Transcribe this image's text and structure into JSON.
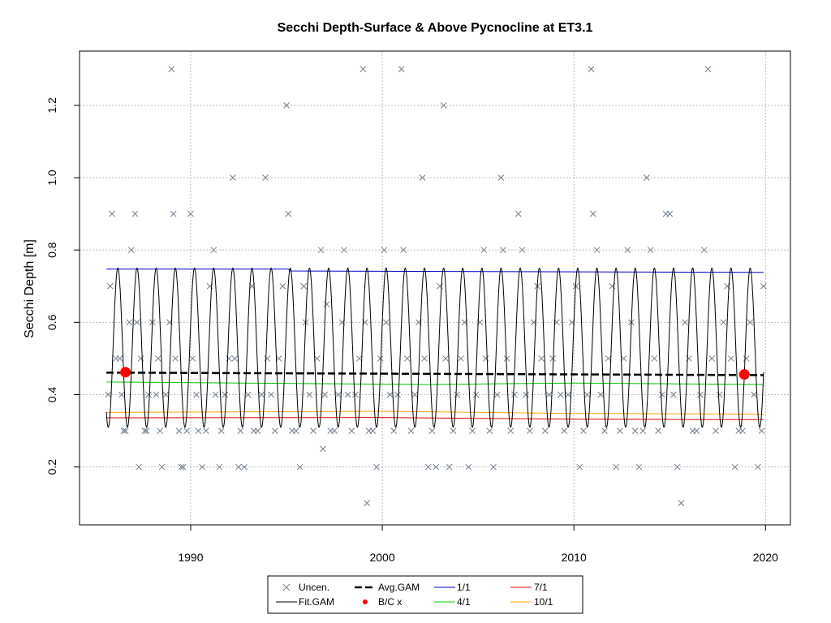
{
  "chart_data": {
    "type": "line",
    "title": "Secchi Depth-Surface & Above Pycnocline at ET3.1",
    "xlabel": "",
    "ylabel": "Secchi Depth [m]",
    "xlim": [
      1984.2,
      2021.3
    ],
    "ylim": [
      0.04,
      1.35
    ],
    "x_ticks": [
      1990,
      2000,
      2010,
      2020
    ],
    "y_ticks": [
      0.2,
      0.4,
      0.6,
      0.8,
      1.0,
      1.2
    ],
    "x_tick_labels": [
      "1990",
      "2000",
      "2010",
      "2020"
    ],
    "y_tick_labels": [
      "0.2",
      "0.4",
      "0.6",
      "0.8",
      "1.0",
      "1.2"
    ],
    "grid": true,
    "legend_position": "bottom-center",
    "colors": {
      "uncensored": "#708090",
      "fit_gam": "#000000",
      "avg_gam": "#000000",
      "bc": "#ff0000",
      "q1": "#0000cd",
      "q4": "#00cc00",
      "q7": "#e00000",
      "q10": "#ffa500",
      "grid": "#bebebe"
    },
    "legend": [
      {
        "label": "Uncen.",
        "symbol": "x",
        "color": "#708090"
      },
      {
        "label": "Fit.GAM",
        "symbol": "line",
        "color": "#000000"
      },
      {
        "label": "Avg.GAM",
        "symbol": "dash",
        "color": "#000000"
      },
      {
        "label": "B/C x",
        "symbol": "dot",
        "color": "#ff0000"
      },
      {
        "label": "1/1",
        "symbol": "line",
        "color": "#0000cd"
      },
      {
        "label": "4/1",
        "symbol": "line",
        "color": "#00cc00"
      },
      {
        "label": "7/1",
        "symbol": "line",
        "color": "#e00000"
      },
      {
        "label": "10/1",
        "symbol": "line",
        "color": "#ffa500"
      }
    ],
    "fit_gam": {
      "start": 1985.6,
      "end": 2019.9,
      "peak": 0.75,
      "trough": 0.31
    },
    "avg_gam": {
      "x": [
        1985.6,
        2019.9
      ],
      "y": [
        0.461,
        0.454
      ]
    },
    "bc_points": [
      {
        "x": 1986.6,
        "y": 0.462
      },
      {
        "x": 2018.9,
        "y": 0.456
      }
    ],
    "series_lines": [
      {
        "name": "1/1",
        "x": [
          1985.6,
          1995.1,
          1995.2,
          2019.9
        ],
        "y": [
          0.747,
          0.747,
          0.742,
          0.738
        ]
      },
      {
        "name": "4/1",
        "x": [
          1985.6,
          2002.5,
          2010.0,
          2019.9
        ],
        "y": [
          0.435,
          0.428,
          0.432,
          0.428
        ]
      },
      {
        "name": "7/1",
        "x": [
          1985.6,
          2000.0,
          2010.0,
          2019.9
        ],
        "y": [
          0.336,
          0.337,
          0.332,
          0.331
        ]
      },
      {
        "name": "10/1",
        "x": [
          1985.6,
          2000.0,
          2010.0,
          2019.9
        ],
        "y": [
          0.351,
          0.354,
          0.348,
          0.346
        ]
      }
    ],
    "observations": [
      [
        1985.7,
        0.4
      ],
      [
        1985.8,
        0.7
      ],
      [
        1985.9,
        0.9
      ],
      [
        1986.1,
        0.5
      ],
      [
        1986.3,
        0.5
      ],
      [
        1986.4,
        0.4
      ],
      [
        1986.5,
        0.3
      ],
      [
        1986.6,
        0.3
      ],
      [
        1986.8,
        0.6
      ],
      [
        1986.9,
        0.8
      ],
      [
        1987.1,
        0.9
      ],
      [
        1987.2,
        0.6
      ],
      [
        1987.3,
        0.2
      ],
      [
        1987.4,
        0.5
      ],
      [
        1987.6,
        0.3
      ],
      [
        1987.7,
        0.3
      ],
      [
        1987.8,
        0.4
      ],
      [
        1988.0,
        0.6
      ],
      [
        1988.2,
        0.4
      ],
      [
        1988.3,
        0.5
      ],
      [
        1988.4,
        0.3
      ],
      [
        1988.5,
        0.2
      ],
      [
        1988.7,
        0.4
      ],
      [
        1988.9,
        0.6
      ],
      [
        1989.0,
        1.3
      ],
      [
        1989.1,
        0.9
      ],
      [
        1989.2,
        0.5
      ],
      [
        1989.4,
        0.3
      ],
      [
        1989.5,
        0.2
      ],
      [
        1989.6,
        0.2
      ],
      [
        1989.8,
        0.3
      ],
      [
        1990.0,
        0.9
      ],
      [
        1990.1,
        0.5
      ],
      [
        1990.3,
        0.4
      ],
      [
        1990.4,
        0.3
      ],
      [
        1990.6,
        0.2
      ],
      [
        1990.8,
        0.3
      ],
      [
        1991.0,
        0.7
      ],
      [
        1991.2,
        0.8
      ],
      [
        1991.3,
        0.4
      ],
      [
        1991.5,
        0.2
      ],
      [
        1991.6,
        0.3
      ],
      [
        1991.8,
        0.4
      ],
      [
        1992.0,
        0.5
      ],
      [
        1992.2,
        1.0
      ],
      [
        1992.3,
        0.5
      ],
      [
        1992.5,
        0.2
      ],
      [
        1992.6,
        0.3
      ],
      [
        1992.8,
        0.2
      ],
      [
        1993.0,
        0.4
      ],
      [
        1993.2,
        0.7
      ],
      [
        1993.3,
        0.3
      ],
      [
        1993.5,
        0.3
      ],
      [
        1993.7,
        0.4
      ],
      [
        1993.9,
        1.0
      ],
      [
        1994.0,
        0.5
      ],
      [
        1994.2,
        0.4
      ],
      [
        1994.4,
        0.3
      ],
      [
        1994.6,
        0.5
      ],
      [
        1994.8,
        0.7
      ],
      [
        1995.0,
        1.2
      ],
      [
        1995.1,
        0.9
      ],
      [
        1995.3,
        0.3
      ],
      [
        1995.5,
        0.3
      ],
      [
        1995.7,
        0.2
      ],
      [
        1995.9,
        0.7
      ],
      [
        1996.0,
        0.6
      ],
      [
        1996.2,
        0.4
      ],
      [
        1996.4,
        0.3
      ],
      [
        1996.6,
        0.5
      ],
      [
        1996.8,
        0.8
      ],
      [
        1997.0,
        0.4
      ],
      [
        1997.1,
        0.65
      ],
      [
        1997.3,
        0.3
      ],
      [
        1997.5,
        0.3
      ],
      [
        1997.7,
        0.4
      ],
      [
        1997.9,
        0.6
      ],
      [
        1998.0,
        0.8
      ],
      [
        1998.2,
        0.4
      ],
      [
        1998.4,
        0.3
      ],
      [
        1998.6,
        0.4
      ],
      [
        1998.8,
        0.5
      ],
      [
        1999.0,
        1.3
      ],
      [
        1999.1,
        0.6
      ],
      [
        1999.3,
        0.3
      ],
      [
        1999.5,
        0.3
      ],
      [
        1999.7,
        0.2
      ],
      [
        1999.9,
        0.5
      ],
      [
        2000.1,
        0.8
      ],
      [
        2000.2,
        0.6
      ],
      [
        2000.4,
        0.4
      ],
      [
        2000.6,
        0.3
      ],
      [
        2000.8,
        0.4
      ],
      [
        2001.0,
        1.3
      ],
      [
        2001.1,
        0.8
      ],
      [
        2001.3,
        0.5
      ],
      [
        2001.5,
        0.3
      ],
      [
        2001.7,
        0.4
      ],
      [
        2001.9,
        0.6
      ],
      [
        2002.1,
        1.0
      ],
      [
        2002.2,
        0.5
      ],
      [
        2002.4,
        0.2
      ],
      [
        2002.6,
        0.3
      ],
      [
        2002.8,
        0.2
      ],
      [
        2003.0,
        0.7
      ],
      [
        2003.2,
        1.2
      ],
      [
        2003.3,
        0.5
      ],
      [
        2003.5,
        0.2
      ],
      [
        2003.7,
        0.3
      ],
      [
        2003.9,
        0.4
      ],
      [
        2004.1,
        0.5
      ],
      [
        2004.3,
        0.6
      ],
      [
        2004.5,
        0.2
      ],
      [
        2004.7,
        0.3
      ],
      [
        2004.9,
        0.4
      ],
      [
        2005.1,
        0.6
      ],
      [
        2005.3,
        0.8
      ],
      [
        2005.4,
        0.5
      ],
      [
        2005.6,
        0.3
      ],
      [
        2005.8,
        0.2
      ],
      [
        2006.0,
        0.4
      ],
      [
        2006.2,
        1.0
      ],
      [
        2006.3,
        0.8
      ],
      [
        2006.5,
        0.5
      ],
      [
        2006.7,
        0.3
      ],
      [
        2006.9,
        0.4
      ],
      [
        2007.1,
        0.9
      ],
      [
        2007.3,
        0.8
      ],
      [
        2007.5,
        0.4
      ],
      [
        2007.7,
        0.3
      ],
      [
        2007.9,
        0.6
      ],
      [
        2008.1,
        0.7
      ],
      [
        2008.3,
        0.5
      ],
      [
        2008.5,
        0.3
      ],
      [
        2008.7,
        0.4
      ],
      [
        2008.9,
        0.5
      ],
      [
        2009.1,
        0.6
      ],
      [
        2009.3,
        0.4
      ],
      [
        2009.5,
        0.3
      ],
      [
        2009.7,
        0.4
      ],
      [
        2009.9,
        0.6
      ],
      [
        2010.1,
        0.7
      ],
      [
        2010.3,
        0.2
      ],
      [
        2010.5,
        0.3
      ],
      [
        2010.7,
        0.4
      ],
      [
        2010.9,
        1.3
      ],
      [
        2011.0,
        0.9
      ],
      [
        2011.2,
        0.8
      ],
      [
        2011.4,
        0.4
      ],
      [
        2011.6,
        0.3
      ],
      [
        2011.8,
        0.5
      ],
      [
        2012.0,
        0.7
      ],
      [
        2012.2,
        0.2
      ],
      [
        2012.4,
        0.3
      ],
      [
        2012.6,
        0.5
      ],
      [
        2012.8,
        0.8
      ],
      [
        2013.0,
        0.6
      ],
      [
        2013.2,
        0.3
      ],
      [
        2013.4,
        0.2
      ],
      [
        2013.6,
        0.3
      ],
      [
        2013.8,
        1.0
      ],
      [
        2014.0,
        0.8
      ],
      [
        2014.2,
        0.5
      ],
      [
        2014.4,
        0.3
      ],
      [
        2014.6,
        0.4
      ],
      [
        2014.8,
        0.9
      ],
      [
        2015.0,
        0.9
      ],
      [
        2015.2,
        0.4
      ],
      [
        2015.4,
        0.2
      ],
      [
        2015.6,
        0.1
      ],
      [
        2015.8,
        0.6
      ],
      [
        2016.0,
        0.5
      ],
      [
        2016.2,
        0.3
      ],
      [
        2016.4,
        0.3
      ],
      [
        2016.6,
        0.4
      ],
      [
        2016.8,
        0.8
      ],
      [
        2017.0,
        1.3
      ],
      [
        2017.2,
        0.5
      ],
      [
        2017.4,
        0.3
      ],
      [
        2017.6,
        0.4
      ],
      [
        2017.8,
        0.6
      ],
      [
        2018.0,
        0.7
      ],
      [
        2018.2,
        0.5
      ],
      [
        2018.4,
        0.2
      ],
      [
        2018.6,
        0.3
      ],
      [
        2018.8,
        0.3
      ],
      [
        2019.0,
        0.5
      ],
      [
        2019.2,
        0.6
      ],
      [
        2019.4,
        0.4
      ],
      [
        2019.6,
        0.2
      ],
      [
        2019.8,
        0.3
      ],
      [
        2019.9,
        0.7
      ],
      [
        1999.2,
        0.1
      ],
      [
        1996.9,
        0.25
      ]
    ]
  }
}
